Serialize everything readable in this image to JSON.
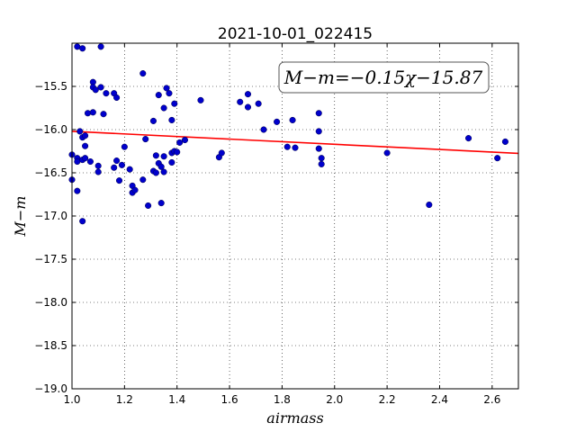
{
  "chart_data": {
    "type": "scatter",
    "title": "2021-10-01_022415",
    "xlabel": "airmass",
    "ylabel": "M−m",
    "xlim": [
      1.0,
      2.7
    ],
    "ylim": [
      -19.0,
      -15.0
    ],
    "y_inverted": true,
    "grid": true,
    "x_ticks": [
      1.0,
      1.2,
      1.4,
      1.6,
      1.8,
      2.0,
      2.2,
      2.4,
      2.6
    ],
    "x_tick_labels": [
      "1.0",
      "1.2",
      "1.4",
      "1.6",
      "1.8",
      "2.0",
      "2.2",
      "2.4",
      "2.6"
    ],
    "y_ticks": [
      -15.5,
      -16.0,
      -16.5,
      -17.0,
      -17.5,
      -18.0,
      -18.5,
      -19.0
    ],
    "y_tick_labels": [
      "−15.5",
      "−16.0",
      "−16.5",
      "−17.0",
      "−17.5",
      "−18.0",
      "−18.5",
      "−19.0"
    ],
    "annotation": "M−m=−0.15χ−15.87",
    "point_color": "#0000cc",
    "fit_color": "#ff0000",
    "fit": {
      "slope": -0.15,
      "intercept": -15.87
    },
    "points": [
      {
        "x": 1.0,
        "y": -16.29
      },
      {
        "x": 1.0,
        "y": -16.58
      },
      {
        "x": 1.02,
        "y": -15.04
      },
      {
        "x": 1.04,
        "y": -15.06
      },
      {
        "x": 1.02,
        "y": -16.33
      },
      {
        "x": 1.02,
        "y": -16.37
      },
      {
        "x": 1.03,
        "y": -16.02
      },
      {
        "x": 1.04,
        "y": -16.35
      },
      {
        "x": 1.04,
        "y": -16.09
      },
      {
        "x": 1.05,
        "y": -16.07
      },
      {
        "x": 1.05,
        "y": -16.19
      },
      {
        "x": 1.05,
        "y": -16.33
      },
      {
        "x": 1.02,
        "y": -16.71
      },
      {
        "x": 1.04,
        "y": -17.06
      },
      {
        "x": 1.06,
        "y": -15.81
      },
      {
        "x": 1.07,
        "y": -16.37
      },
      {
        "x": 1.08,
        "y": -15.45
      },
      {
        "x": 1.08,
        "y": -15.51
      },
      {
        "x": 1.09,
        "y": -15.54
      },
      {
        "x": 1.08,
        "y": -15.8
      },
      {
        "x": 1.1,
        "y": -16.42
      },
      {
        "x": 1.1,
        "y": -16.49
      },
      {
        "x": 1.11,
        "y": -15.04
      },
      {
        "x": 1.11,
        "y": -15.51
      },
      {
        "x": 1.12,
        "y": -15.82
      },
      {
        "x": 1.13,
        "y": -15.58
      },
      {
        "x": 1.16,
        "y": -15.58
      },
      {
        "x": 1.17,
        "y": -15.63
      },
      {
        "x": 1.16,
        "y": -16.44
      },
      {
        "x": 1.17,
        "y": -16.36
      },
      {
        "x": 1.19,
        "y": -16.41
      },
      {
        "x": 1.18,
        "y": -16.59
      },
      {
        "x": 1.2,
        "y": -16.2
      },
      {
        "x": 1.22,
        "y": -16.46
      },
      {
        "x": 1.23,
        "y": -16.65
      },
      {
        "x": 1.23,
        "y": -16.73
      },
      {
        "x": 1.24,
        "y": -16.7
      },
      {
        "x": 1.27,
        "y": -16.58
      },
      {
        "x": 1.27,
        "y": -15.35
      },
      {
        "x": 1.28,
        "y": -16.11
      },
      {
        "x": 1.29,
        "y": -16.88
      },
      {
        "x": 1.31,
        "y": -15.9
      },
      {
        "x": 1.31,
        "y": -16.48
      },
      {
        "x": 1.32,
        "y": -16.3
      },
      {
        "x": 1.32,
        "y": -16.5
      },
      {
        "x": 1.33,
        "y": -15.6
      },
      {
        "x": 1.33,
        "y": -16.39
      },
      {
        "x": 1.34,
        "y": -16.85
      },
      {
        "x": 1.34,
        "y": -16.43
      },
      {
        "x": 1.35,
        "y": -16.31
      },
      {
        "x": 1.35,
        "y": -16.49
      },
      {
        "x": 1.35,
        "y": -15.75
      },
      {
        "x": 1.36,
        "y": -15.52
      },
      {
        "x": 1.37,
        "y": -15.58
      },
      {
        "x": 1.38,
        "y": -15.89
      },
      {
        "x": 1.38,
        "y": -16.27
      },
      {
        "x": 1.38,
        "y": -16.38
      },
      {
        "x": 1.39,
        "y": -16.25
      },
      {
        "x": 1.39,
        "y": -15.7
      },
      {
        "x": 1.4,
        "y": -16.26
      },
      {
        "x": 1.41,
        "y": -16.15
      },
      {
        "x": 1.43,
        "y": -16.12
      },
      {
        "x": 1.49,
        "y": -15.66
      },
      {
        "x": 1.56,
        "y": -16.32
      },
      {
        "x": 1.57,
        "y": -16.27
      },
      {
        "x": 1.64,
        "y": -15.68
      },
      {
        "x": 1.67,
        "y": -15.59
      },
      {
        "x": 1.67,
        "y": -15.74
      },
      {
        "x": 1.71,
        "y": -15.7
      },
      {
        "x": 1.73,
        "y": -16.0
      },
      {
        "x": 1.78,
        "y": -15.91
      },
      {
        "x": 1.82,
        "y": -16.2
      },
      {
        "x": 1.84,
        "y": -15.89
      },
      {
        "x": 1.85,
        "y": -16.21
      },
      {
        "x": 1.94,
        "y": -16.22
      },
      {
        "x": 1.94,
        "y": -15.81
      },
      {
        "x": 1.94,
        "y": -16.02
      },
      {
        "x": 1.95,
        "y": -16.4
      },
      {
        "x": 1.95,
        "y": -16.33
      },
      {
        "x": 2.2,
        "y": -16.27
      },
      {
        "x": 2.36,
        "y": -16.87
      },
      {
        "x": 2.51,
        "y": -16.1
      },
      {
        "x": 2.62,
        "y": -16.33
      },
      {
        "x": 2.65,
        "y": -16.14
      }
    ]
  }
}
